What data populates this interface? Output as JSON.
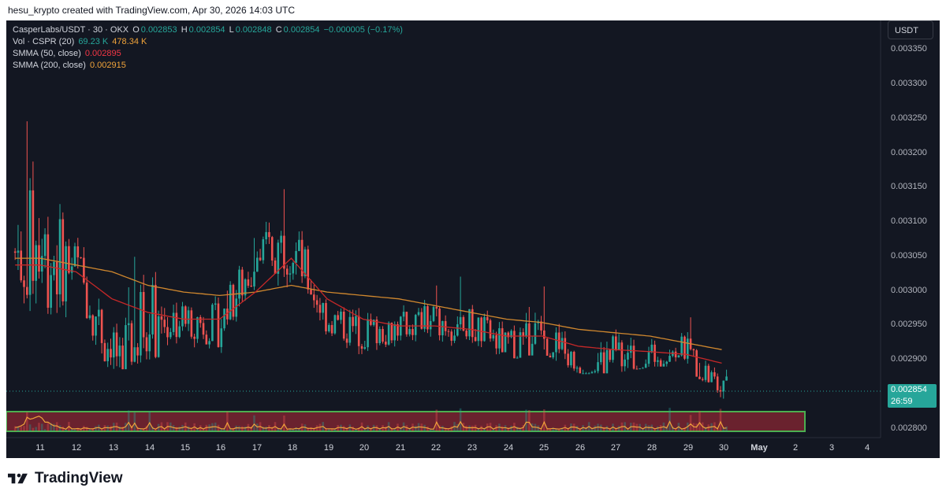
{
  "header": {
    "created_text": "hesu_krypto created with TradingView.com, Apr 30, 2026 14:03 UTC"
  },
  "legend": {
    "symbol": "CasperLabs/USDT · 30 · OKX",
    "open_label": "O",
    "open": "0.002853",
    "high_label": "H",
    "high": "0.002854",
    "low_label": "L",
    "low": "0.002848",
    "close_label": "C",
    "close": "0.002854",
    "change": "−0.000005 (−0.17%)",
    "volume_label": "Vol · CSPR (20)",
    "volume": "69.23 K",
    "volume_ma": "478.34 K",
    "smma50_label": "SMMA (50, close)",
    "smma50": "0.002895",
    "smma200_label": "SMMA (200, close)",
    "smma200": "0.002915"
  },
  "currency_button": "USDT",
  "price_axis": [
    "0.003350",
    "0.003300",
    "0.003250",
    "0.003200",
    "0.003150",
    "0.003100",
    "0.003050",
    "0.003000",
    "0.002950",
    "0.002900",
    "0.002800"
  ],
  "price_tag": {
    "price": "0.002854",
    "countdown": "26:59"
  },
  "time_axis": [
    "11",
    "12",
    "13",
    "14",
    "15",
    "16",
    "17",
    "18",
    "19",
    "20",
    "21",
    "22",
    "23",
    "24",
    "25",
    "26",
    "27",
    "28",
    "29",
    "30",
    "May",
    "2",
    "3",
    "4"
  ],
  "brand": {
    "name": "TradingView"
  },
  "colors": {
    "background": "#131722",
    "up": "#26a69a",
    "down": "#ef5350",
    "smma50": "#c62828",
    "smma200": "#d1882e",
    "zone_fill": "#7a2430",
    "zone_border": "#4caf50",
    "volume_ma": "#f0a33a"
  },
  "chart_data": {
    "type": "candlestick",
    "pair": "CasperLabs/USDT",
    "interval": "30",
    "exchange": "OKX",
    "x": [
      "11",
      "12",
      "13",
      "14",
      "15",
      "16",
      "17",
      "18",
      "19",
      "20",
      "21",
      "22",
      "23",
      "24",
      "25",
      "26",
      "27",
      "28",
      "29",
      "30"
    ],
    "close_approx": [
      0.00306,
      0.00304,
      0.002905,
      0.00296,
      0.00296,
      0.00295,
      0.00305,
      0.00307,
      0.00296,
      0.00294,
      0.00295,
      0.00296,
      0.00295,
      0.00292,
      0.00294,
      0.00289,
      0.0029,
      0.002905,
      0.002915,
      0.002854
    ],
    "high_approx": [
      0.00333,
      0.00312,
      0.00302,
      0.00315,
      0.00301,
      0.00302,
      0.00312,
      0.00316,
      0.00302,
      0.003,
      0.003,
      0.00303,
      0.00302,
      0.00298,
      0.00306,
      0.00294,
      0.00305,
      0.00296,
      0.00297,
      0.00293
    ],
    "low_approx": [
      0.00297,
      0.00296,
      0.00288,
      0.0029,
      0.00291,
      0.0029,
      0.00298,
      0.003,
      0.00292,
      0.0029,
      0.00292,
      0.00293,
      0.00291,
      0.0029,
      0.00291,
      0.00288,
      0.00288,
      0.00289,
      0.00289,
      0.00284
    ],
    "smma50_approx": [
      0.00304,
      0.00303,
      0.00299,
      0.00297,
      0.00296,
      0.00296,
      0.003,
      0.00305,
      0.00299,
      0.00296,
      0.00295,
      0.00295,
      0.002945,
      0.002935,
      0.002935,
      0.00292,
      0.002915,
      0.002912,
      0.002908,
      0.002895
    ],
    "smma200_approx": [
      0.00305,
      0.00304,
      0.00303,
      0.00301,
      0.003,
      0.002995,
      0.003,
      0.00301,
      0.003,
      0.002995,
      0.00299,
      0.00298,
      0.00297,
      0.00296,
      0.002955,
      0.002945,
      0.00294,
      0.002935,
      0.002925,
      0.002915
    ],
    "ylim": [
      0.002785,
      0.003385
    ],
    "last_price": 0.002854
  }
}
